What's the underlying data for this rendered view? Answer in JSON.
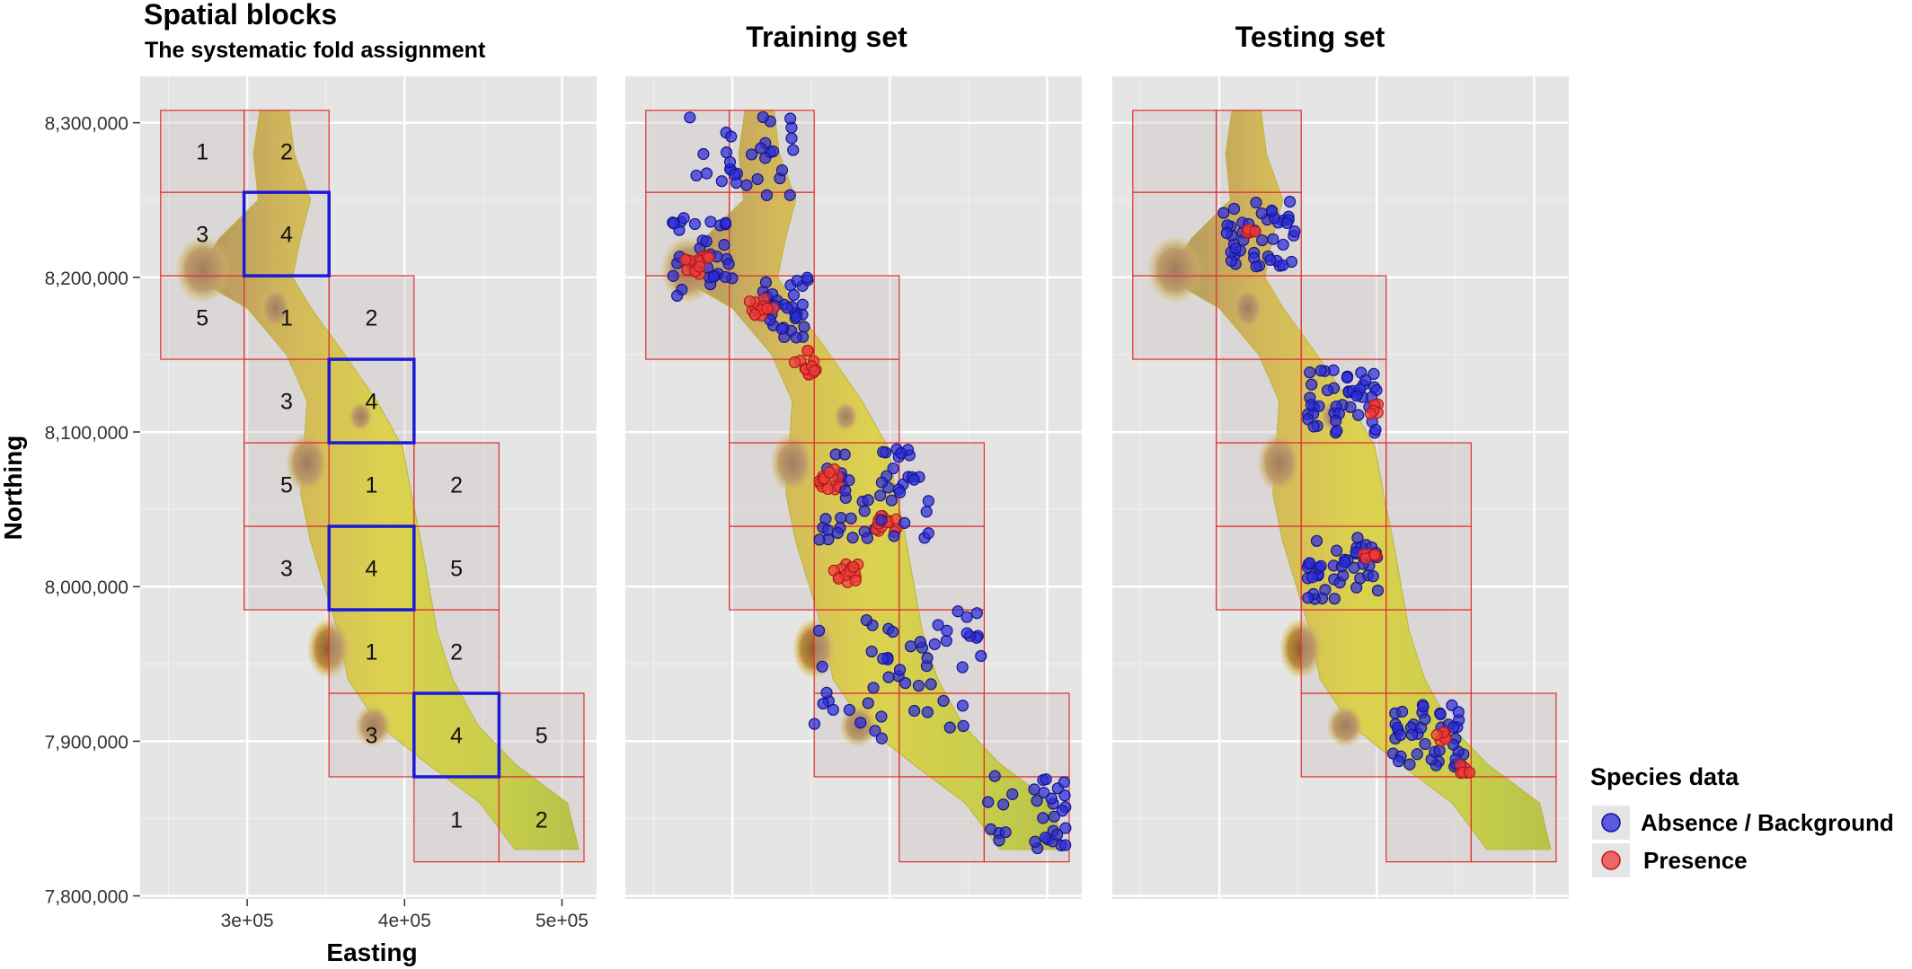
{
  "panels": [
    {
      "title": "Spatial blocks",
      "subtitle": "The systematic fold assignment"
    },
    {
      "title": "Training set",
      "subtitle": ""
    },
    {
      "title": "Testing set",
      "subtitle": ""
    }
  ],
  "legend": {
    "title": "Species data",
    "items": [
      {
        "label": "Absence / Background",
        "color": "#2b2bd9"
      },
      {
        "label": "Presence",
        "color": "#ef3b3b"
      }
    ]
  },
  "colors": {
    "panel_bg": "#e5e5e5",
    "block_border": "#e03030",
    "selected_block": "#1a1ad6",
    "absence": "#2b2bd9",
    "presence": "#ef3b3b"
  },
  "chart_data": {
    "type": "scatter",
    "xlabel": "Easting",
    "ylabel": "Northing",
    "xlim": [
      232000,
      522000
    ],
    "ylim": [
      7798000,
      8330000
    ],
    "x_ticks": [
      {
        "value": 300000,
        "label": "3e+05"
      },
      {
        "value": 400000,
        "label": "4e+05"
      },
      {
        "value": 500000,
        "label": "5e+05"
      }
    ],
    "y_ticks": [
      {
        "value": 7800000,
        "label": "7,800,000"
      },
      {
        "value": 7900000,
        "label": "7,900,000"
      },
      {
        "value": 8000000,
        "label": "8,000,000"
      },
      {
        "value": 8100000,
        "label": "8,100,000"
      },
      {
        "value": 8200000,
        "label": "8,200,000"
      },
      {
        "value": 8300000,
        "label": "8,300,000"
      }
    ],
    "grid": true,
    "legend_position": "right",
    "blocks": [
      {
        "x": [
          245000,
          298000
        ],
        "y": [
          8255000,
          8308000
        ],
        "fold": "1"
      },
      {
        "x": [
          298000,
          352000
        ],
        "y": [
          8255000,
          8308000
        ],
        "fold": "2"
      },
      {
        "x": [
          245000,
          298000
        ],
        "y": [
          8201000,
          8255000
        ],
        "fold": "3"
      },
      {
        "x": [
          298000,
          352000
        ],
        "y": [
          8201000,
          8255000
        ],
        "fold": "4"
      },
      {
        "x": [
          245000,
          298000
        ],
        "y": [
          8147000,
          8201000
        ],
        "fold": "5"
      },
      {
        "x": [
          298000,
          352000
        ],
        "y": [
          8147000,
          8201000
        ],
        "fold": "1"
      },
      {
        "x": [
          352000,
          406000
        ],
        "y": [
          8147000,
          8201000
        ],
        "fold": "2"
      },
      {
        "x": [
          298000,
          352000
        ],
        "y": [
          8093000,
          8147000
        ],
        "fold": "3"
      },
      {
        "x": [
          352000,
          406000
        ],
        "y": [
          8093000,
          8147000
        ],
        "fold": "4"
      },
      {
        "x": [
          298000,
          352000
        ],
        "y": [
          8039000,
          8093000
        ],
        "fold": "5"
      },
      {
        "x": [
          352000,
          406000
        ],
        "y": [
          8039000,
          8093000
        ],
        "fold": "1"
      },
      {
        "x": [
          406000,
          460000
        ],
        "y": [
          8039000,
          8093000
        ],
        "fold": "2"
      },
      {
        "x": [
          298000,
          352000
        ],
        "y": [
          7985000,
          8039000
        ],
        "fold": "3"
      },
      {
        "x": [
          352000,
          406000
        ],
        "y": [
          7985000,
          8039000
        ],
        "fold": "4"
      },
      {
        "x": [
          406000,
          460000
        ],
        "y": [
          7985000,
          8039000
        ],
        "fold": "5"
      },
      {
        "x": [
          352000,
          406000
        ],
        "y": [
          7931000,
          7985000
        ],
        "fold": "1"
      },
      {
        "x": [
          406000,
          460000
        ],
        "y": [
          7931000,
          7985000
        ],
        "fold": "2"
      },
      {
        "x": [
          352000,
          406000
        ],
        "y": [
          7877000,
          7931000
        ],
        "fold": "3"
      },
      {
        "x": [
          406000,
          460000
        ],
        "y": [
          7877000,
          7931000
        ],
        "fold": "4"
      },
      {
        "x": [
          460000,
          514000
        ],
        "y": [
          7877000,
          7931000
        ],
        "fold": "5"
      },
      {
        "x": [
          406000,
          460000
        ],
        "y": [
          7822000,
          7877000
        ],
        "fold": "1"
      },
      {
        "x": [
          460000,
          514000
        ],
        "y": [
          7822000,
          7877000
        ],
        "fold": "2"
      }
    ],
    "selected_fold": "4",
    "testing_presence_clusters": [
      {
        "x": 320000,
        "y": 8232000
      },
      {
        "x": 398000,
        "y": 8115000
      },
      {
        "x": 396000,
        "y": 8020000
      },
      {
        "x": 442000,
        "y": 7902000
      },
      {
        "x": 456000,
        "y": 7882000
      }
    ],
    "training_presence_clusters": [
      {
        "x": 278000,
        "y": 8210000
      },
      {
        "x": 318000,
        "y": 8180000
      },
      {
        "x": 348000,
        "y": 8145000
      },
      {
        "x": 363000,
        "y": 8070000
      },
      {
        "x": 398000,
        "y": 8040000
      },
      {
        "x": 373000,
        "y": 8010000
      }
    ],
    "absence_extent": [
      {
        "x": [
          273000,
          343000
        ],
        "y": [
          8250000,
          8308000
        ]
      },
      {
        "x": [
          262000,
          300000
        ],
        "y": [
          8188000,
          8240000
        ]
      },
      {
        "x": [
          318000,
          348000
        ],
        "y": [
          8160000,
          8200000
        ]
      },
      {
        "x": [
          355000,
          425000
        ],
        "y": [
          8030000,
          8090000
        ]
      },
      {
        "x": [
          352000,
          460000
        ],
        "y": [
          7900000,
          7985000
        ]
      },
      {
        "x": [
          460000,
          514000
        ],
        "y": [
          7830000,
          7880000
        ]
      }
    ]
  }
}
